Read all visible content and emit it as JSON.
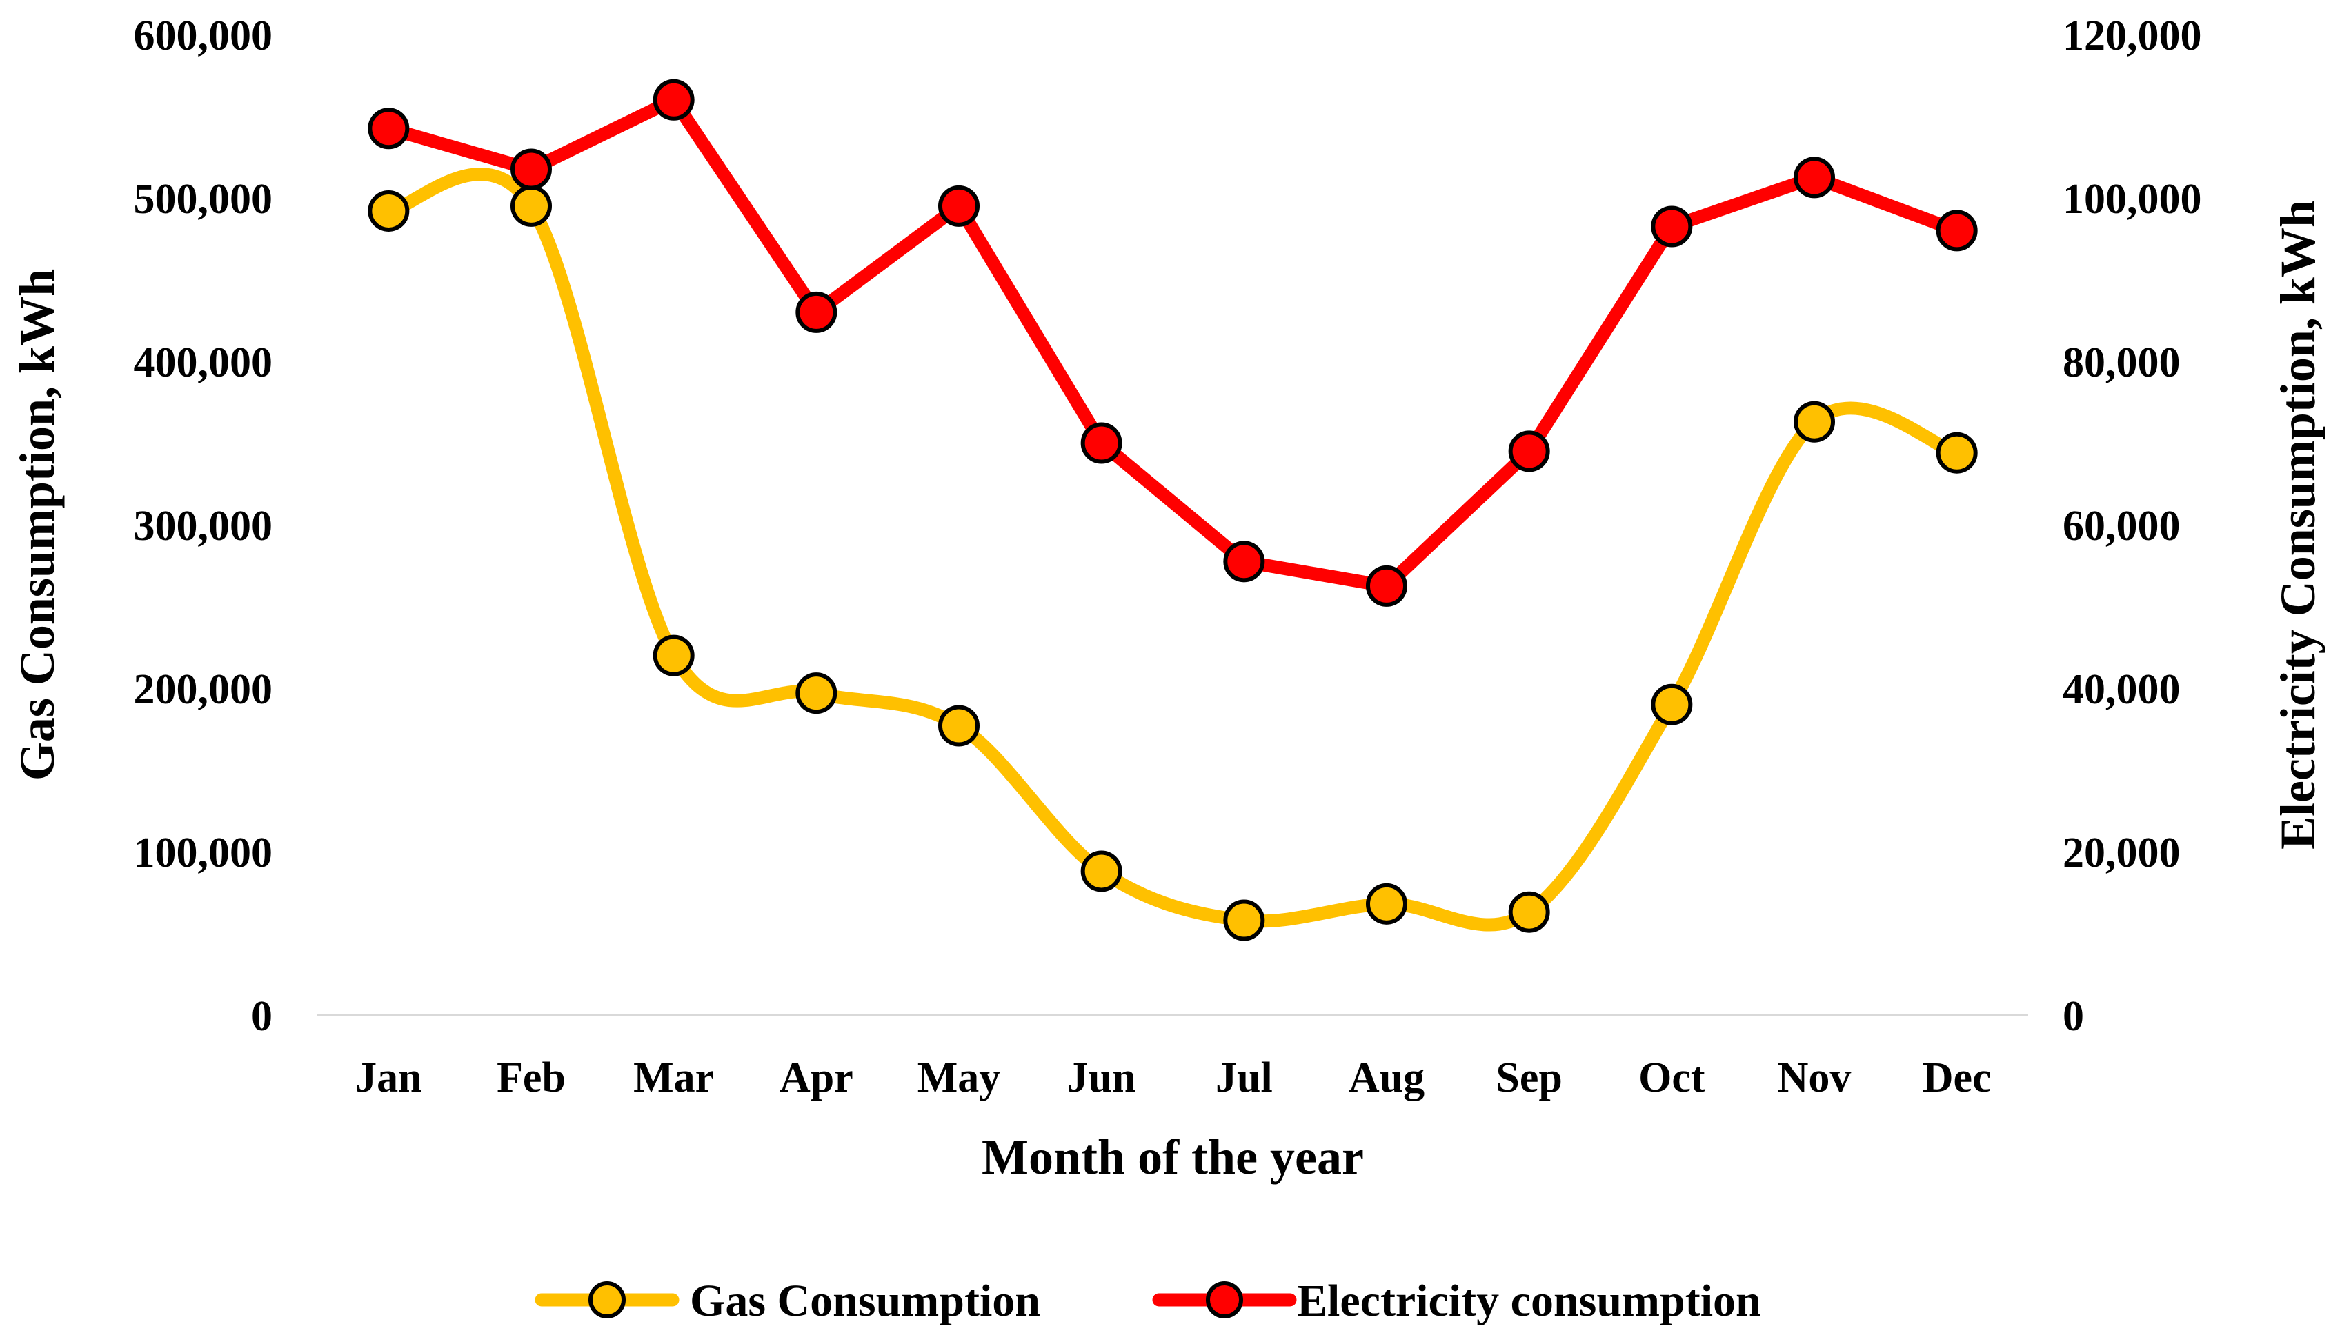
{
  "chart_data": {
    "type": "line",
    "categories": [
      "Jan",
      "Feb",
      "Mar",
      "Apr",
      "May",
      "Jun",
      "Jul",
      "Aug",
      "Sep",
      "Oct",
      "Nov",
      "Dec"
    ],
    "xlabel": "Month of the year",
    "ylabel": "Gas Consumption, kWh",
    "y2label": "Electricity Consumption, kWh",
    "ylim": [
      0,
      600000
    ],
    "y2lim": [
      0,
      120000
    ],
    "yticks": [
      "0",
      "100,000",
      "200,000",
      "300,000",
      "400,000",
      "500,000",
      "600,000"
    ],
    "y2ticks": [
      "0",
      "20,000",
      "40,000",
      "60,000",
      "80,000",
      "100,000",
      "120,000"
    ],
    "grid": false,
    "legend_position": "bottom",
    "series": [
      {
        "name": "Gas Consumption",
        "axis": "left",
        "smooth": true,
        "color": "#FFC000",
        "marker_color": "#FFC000",
        "values": [
          492000,
          495000,
          220000,
          197000,
          177000,
          88000,
          58000,
          68000,
          63000,
          190000,
          363000,
          344000
        ]
      },
      {
        "name": "Electricity consumption",
        "axis": "right",
        "smooth": false,
        "color": "#FF0000",
        "marker_color": "#FF0000",
        "values": [
          108500,
          103500,
          112000,
          86000,
          99000,
          70000,
          55500,
          52500,
          69000,
          96500,
          102500,
          96000
        ]
      }
    ]
  }
}
